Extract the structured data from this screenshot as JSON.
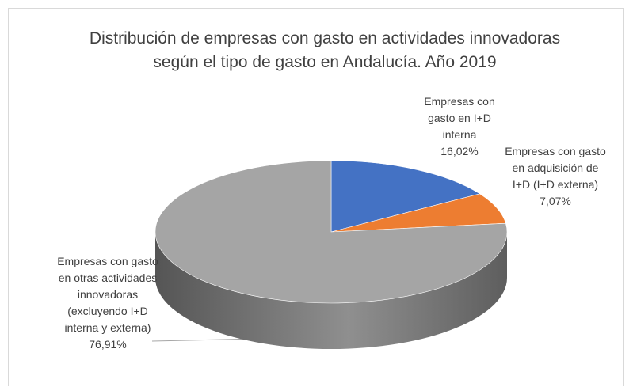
{
  "chart_data": {
    "type": "pie",
    "title": "Distribución de empresas con gasto en actividades innovadoras según el tipo de gasto en Andalucía. Año 2019",
    "categories": [
      "Empresas con gasto en I+D interna",
      "Empresas con gasto en adquisición de I+D (I+D externa)",
      "Empresas con gasto en otras actividades innovadoras (excluyendo I+D interna y externa)"
    ],
    "values": [
      16.02,
      7.07,
      76.91
    ],
    "value_labels": [
      "16,02%",
      "7,07%",
      "76,91%"
    ],
    "colors": [
      "#4472c4",
      "#ed7d31",
      "#a5a5a5"
    ]
  }
}
